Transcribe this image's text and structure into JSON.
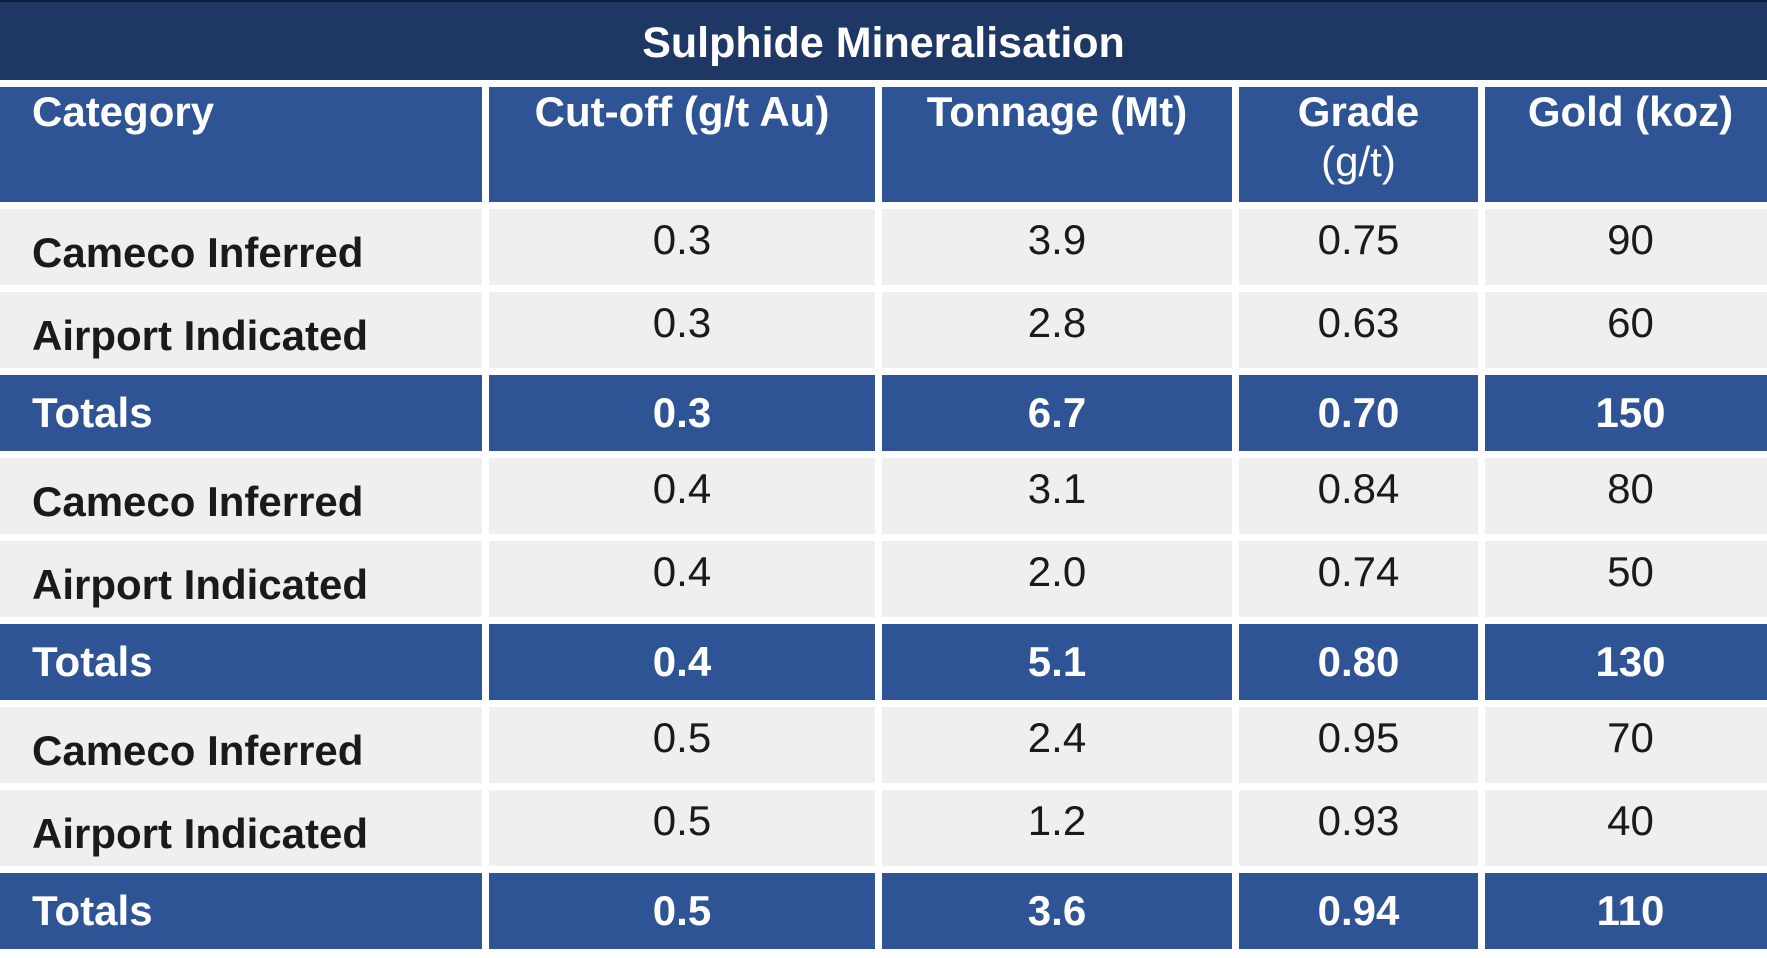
{
  "title": "Sulphide Mineralisation",
  "headers": {
    "category": "Category",
    "cutoff": "Cut-off (g/t Au)",
    "tonnage": "Tonnage (Mt)",
    "grade_line1": "Grade",
    "grade_line2": "(g/t)",
    "gold": "Gold (koz)"
  },
  "rows": [
    {
      "category": "Cameco Inferred",
      "cutoff": "0.3",
      "tonnage": "3.9",
      "grade": "0.75",
      "gold": "90"
    },
    {
      "category": "Airport Indicated",
      "cutoff": "0.3",
      "tonnage": "2.8",
      "grade": "0.63",
      "gold": "60"
    },
    {
      "category": "Totals",
      "cutoff": "0.3",
      "tonnage": "6.7",
      "grade": "0.70",
      "gold": "150"
    },
    {
      "category": "Cameco Inferred",
      "cutoff": "0.4",
      "tonnage": "3.1",
      "grade": "0.84",
      "gold": "80"
    },
    {
      "category": "Airport Indicated",
      "cutoff": "0.4",
      "tonnage": "2.0",
      "grade": "0.74",
      "gold": "50"
    },
    {
      "category": "Totals",
      "cutoff": "0.4",
      "tonnage": "5.1",
      "grade": "0.80",
      "gold": "130"
    },
    {
      "category": "Cameco Inferred",
      "cutoff": "0.5",
      "tonnage": "2.4",
      "grade": "0.95",
      "gold": "70"
    },
    {
      "category": "Airport Indicated",
      "cutoff": "0.5",
      "tonnage": "1.2",
      "grade": "0.93",
      "gold": "40"
    },
    {
      "category": "Totals",
      "cutoff": "0.5",
      "tonnage": "3.6",
      "grade": "0.94",
      "gold": "110"
    }
  ],
  "colors": {
    "title_bg": "#1e3764",
    "header_bg": "#2f5496",
    "row_bg": "#efefef",
    "text_dark": "#1a1a1a",
    "text_light": "#ffffff"
  }
}
